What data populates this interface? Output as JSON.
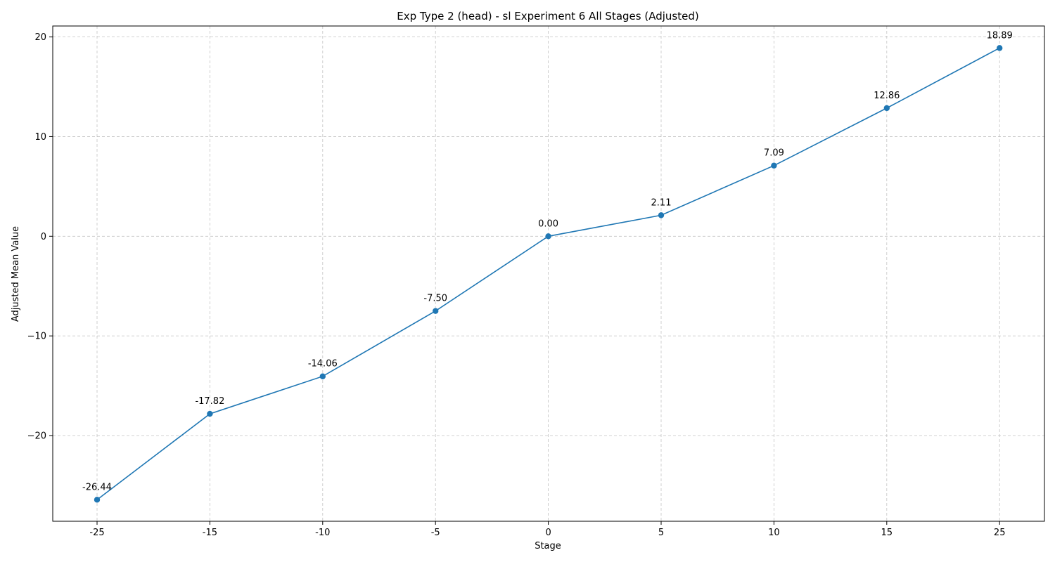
{
  "chart_data": {
    "type": "line",
    "title": "Exp Type 2 (head) - sl Experiment 6 All Stages (Adjusted)",
    "xlabel": "Stage",
    "ylabel": "Adjusted Mean Value",
    "categories": [
      "-25",
      "-15",
      "-10",
      "-5",
      "0",
      "5",
      "10",
      "15",
      "25"
    ],
    "values": [
      -26.44,
      -17.82,
      -14.06,
      -7.5,
      0.0,
      2.11,
      7.09,
      12.86,
      18.89
    ],
    "data_labels": [
      "-26.44",
      "-17.82",
      "-14.06",
      "-7.50",
      "0.00",
      "2.11",
      "7.09",
      "12.86",
      "18.89"
    ],
    "yticks": [
      -20,
      -10,
      0,
      10,
      20
    ],
    "ytick_labels": [
      "−20",
      "−10",
      "0",
      "10",
      "20"
    ],
    "ylim": [
      -28.6,
      21.1
    ],
    "grid": true,
    "marker": "circle",
    "color": "#1f77b4"
  }
}
